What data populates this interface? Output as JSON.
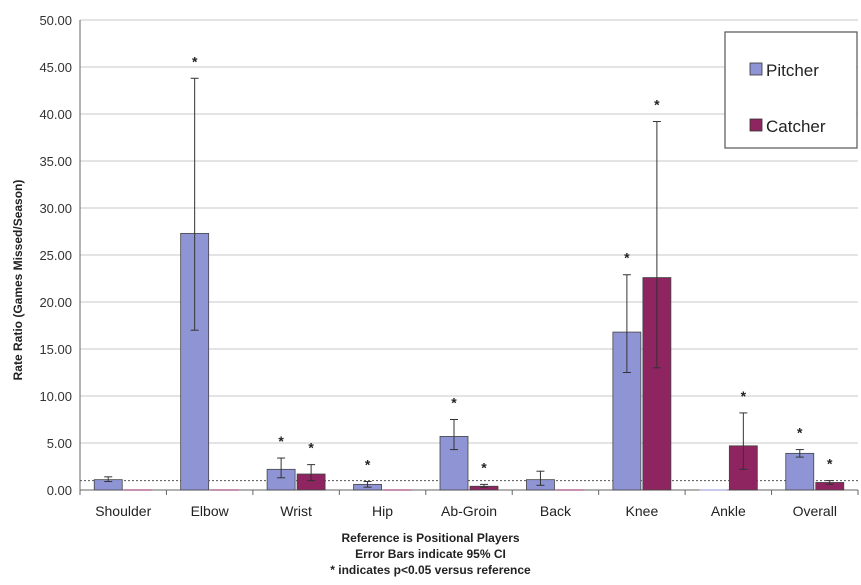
{
  "chart_data": {
    "type": "bar",
    "ylabel": "Rate Ratio (Games Missed/Season)",
    "ylim": [
      0,
      50
    ],
    "yticks": [
      "0.00",
      "5.00",
      "10.00",
      "15.00",
      "20.00",
      "25.00",
      "30.00",
      "35.00",
      "40.00",
      "45.00",
      "50.00"
    ],
    "categories": [
      "Shoulder",
      "Elbow",
      "Wrist",
      "Hip",
      "Ab-Groin",
      "Back",
      "Knee",
      "Ankle",
      "Overall"
    ],
    "reference_line": 1.0,
    "grid": true,
    "legend_position": "top-right",
    "significance_marker": "*",
    "series": [
      {
        "name": "Pitcher",
        "color": "#8f95d4",
        "values": [
          1.1,
          27.3,
          2.2,
          0.6,
          5.7,
          1.1,
          16.8,
          0.0,
          3.9
        ],
        "ci_low": [
          0.9,
          17.0,
          1.3,
          0.3,
          4.3,
          0.5,
          12.5,
          null,
          3.5
        ],
        "ci_high": [
          1.4,
          43.8,
          3.4,
          0.9,
          7.5,
          2.0,
          22.9,
          null,
          4.3
        ],
        "significant": [
          false,
          true,
          true,
          true,
          true,
          false,
          true,
          false,
          true
        ]
      },
      {
        "name": "Catcher",
        "color": "#8e2460",
        "values": [
          0.0,
          0.0,
          1.7,
          0.0,
          0.4,
          0.0,
          22.6,
          4.7,
          0.8
        ],
        "ci_low": [
          null,
          null,
          1.0,
          null,
          0.3,
          null,
          13.0,
          2.2,
          0.6
        ],
        "ci_high": [
          null,
          null,
          2.7,
          null,
          0.6,
          null,
          39.2,
          8.2,
          1.0
        ],
        "significant": [
          false,
          false,
          true,
          false,
          true,
          false,
          true,
          true,
          true
        ]
      }
    ],
    "footnotes": [
      "Reference is Positional Players",
      "Error Bars indicate 95% CI",
      "* indicates p<0.05 versus reference"
    ]
  }
}
